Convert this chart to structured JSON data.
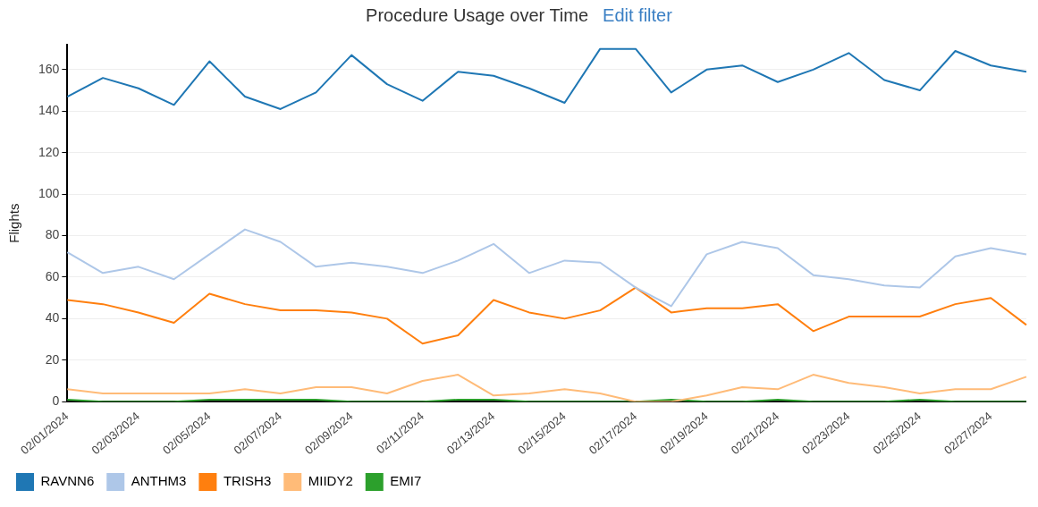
{
  "chart_data": {
    "type": "line",
    "title": "Procedure Usage over Time",
    "subtitle": "Edit filter",
    "ylabel": "Flights",
    "categories": [
      "02/01/2024",
      null,
      "02/03/2024",
      null,
      "02/05/2024",
      null,
      "02/07/2024",
      null,
      "02/09/2024",
      null,
      "02/11/2024",
      null,
      "02/13/2024",
      null,
      "02/15/2024",
      null,
      "02/17/2024",
      null,
      "02/19/2024",
      null,
      "02/21/2024",
      null,
      "02/23/2024",
      null,
      "02/25/2024",
      null,
      "02/27/2024",
      null
    ],
    "series": [
      {
        "name": "RAVNN6",
        "color": "#1f77b4",
        "values": [
          147,
          156,
          151,
          143,
          164,
          147,
          141,
          149,
          167,
          153,
          145,
          159,
          157,
          151,
          144,
          170,
          170,
          149,
          160,
          162,
          154,
          160,
          168,
          155,
          150,
          169,
          162,
          159
        ]
      },
      {
        "name": "ANTHM3",
        "color": "#aec7e8",
        "values": [
          72,
          62,
          65,
          59,
          71,
          83,
          77,
          65,
          67,
          65,
          62,
          68,
          76,
          62,
          68,
          67,
          55,
          46,
          71,
          77,
          74,
          61,
          59,
          56,
          55,
          70,
          74,
          71
        ]
      },
      {
        "name": "TRISH3",
        "color": "#ff7f0e",
        "values": [
          49,
          47,
          43,
          38,
          52,
          47,
          44,
          44,
          43,
          40,
          28,
          32,
          49,
          43,
          40,
          44,
          55,
          43,
          45,
          45,
          47,
          34,
          41,
          41,
          41,
          47,
          50,
          37
        ]
      },
      {
        "name": "MIIDY2",
        "color": "#ffbb78",
        "values": [
          6,
          4,
          4,
          4,
          4,
          6,
          4,
          7,
          7,
          4,
          10,
          13,
          3,
          4,
          6,
          4,
          0,
          0,
          3,
          7,
          6,
          13,
          9,
          7,
          4,
          6,
          6,
          12
        ]
      },
      {
        "name": "EMI7",
        "color": "#2ca02c",
        "values": [
          1,
          0,
          0,
          0,
          1,
          1,
          1,
          1,
          0,
          0,
          0,
          1,
          1,
          0,
          0,
          0,
          0,
          1,
          0,
          0,
          1,
          0,
          0,
          0,
          1,
          0,
          0,
          0
        ]
      }
    ],
    "ylim": [
      0,
      172
    ],
    "yticks": [
      0,
      20,
      40,
      60,
      80,
      100,
      120,
      140,
      160
    ],
    "grid": "y",
    "legend": "bottom left"
  }
}
